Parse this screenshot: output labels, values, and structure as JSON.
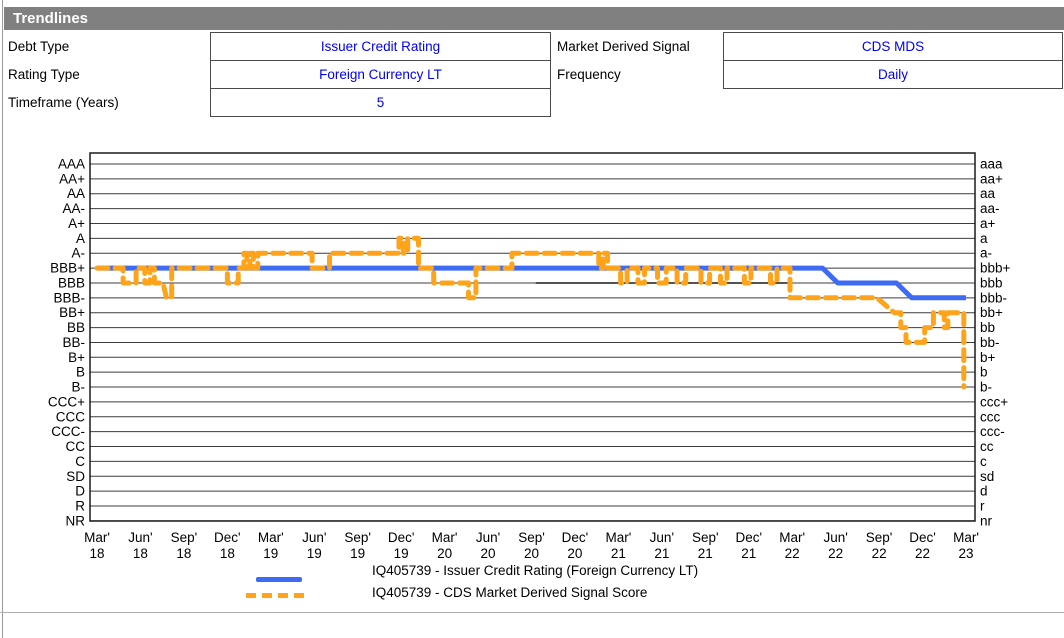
{
  "title": "Trendlines",
  "form": {
    "fields": [
      {
        "label": "Debt Type",
        "value": "Issuer Credit Rating"
      },
      {
        "label": "Market Derived Signal",
        "value": "CDS MDS"
      },
      {
        "label": "Rating Type",
        "value": "Foreign Currency LT"
      },
      {
        "label": "Frequency",
        "value": "Daily"
      },
      {
        "label": "Timeframe (Years)",
        "value": "5"
      }
    ]
  },
  "colors": {
    "titlebar_gray": "#808080",
    "value_text_blue": "#0000f5",
    "icr_blue": "#3e6bf4",
    "mds_orange": "#ffa41a"
  },
  "chart_data": {
    "type": "line",
    "title": "",
    "grid": true,
    "legend_position": "bottom",
    "y_categories_left": [
      "AAA",
      "AA+",
      "AA",
      "AA-",
      "A+",
      "A",
      "A-",
      "BBB+",
      "BBB",
      "BBB-",
      "BB+",
      "BB",
      "BB-",
      "B+",
      "B",
      "B-",
      "CCC+",
      "CCC",
      "CCC-",
      "CC",
      "C",
      "SD",
      "D",
      "R",
      "NR"
    ],
    "y_categories_right": [
      "aaa",
      "aa+",
      "aa",
      "aa-",
      "a+",
      "a",
      "a-",
      "bbb+",
      "bbb",
      "bbb-",
      "bb+",
      "bb",
      "bb-",
      "b+",
      "b",
      "b-",
      "ccc+",
      "ccc",
      "ccc-",
      "cc",
      "c",
      "sd",
      "d",
      "r",
      "nr"
    ],
    "x_ticks": [
      {
        "month": "Mar'",
        "year": "18"
      },
      {
        "month": "Jun'",
        "year": "18"
      },
      {
        "month": "Sep'",
        "year": "18"
      },
      {
        "month": "Dec'",
        "year": "18"
      },
      {
        "month": "Mar'",
        "year": "19"
      },
      {
        "month": "Jun'",
        "year": "19"
      },
      {
        "month": "Sep'",
        "year": "19"
      },
      {
        "month": "Dec'",
        "year": "19"
      },
      {
        "month": "Mar'",
        "year": "20"
      },
      {
        "month": "Jun'",
        "year": "20"
      },
      {
        "month": "Sep'",
        "year": "20"
      },
      {
        "month": "Dec'",
        "year": "20"
      },
      {
        "month": "Mar'",
        "year": "21"
      },
      {
        "month": "Jun'",
        "year": "21"
      },
      {
        "month": "Sep'",
        "year": "21"
      },
      {
        "month": "Dec'",
        "year": "21"
      },
      {
        "month": "Mar'",
        "year": "22"
      },
      {
        "month": "Jun'",
        "year": "22"
      },
      {
        "month": "Sep'",
        "year": "22"
      },
      {
        "month": "Dec'",
        "year": "22"
      },
      {
        "month": "Mar'",
        "year": "23"
      }
    ],
    "x_range": [
      0,
      20
    ],
    "x_unit": "quarters since Mar 2018",
    "y_unit": "rating scale index (0 = AAA ... 24 = NR)",
    "series": [
      {
        "id": "icr-line",
        "name": "IQ405739 - Issuer Credit Rating (Foreign Currency LT)",
        "color": "#3e6bf4",
        "style": "solid",
        "width": 5,
        "z": 1,
        "points": [
          [
            0,
            7
          ],
          [
            16.7,
            7
          ],
          [
            17.05,
            8
          ],
          [
            18.4,
            8
          ],
          [
            18.75,
            9
          ],
          [
            20,
            9
          ]
        ]
      },
      {
        "id": "mds-line",
        "name": "IQ405739 - CDS Market Derived Signal Score",
        "color": "#ffa41a",
        "style": "dashed",
        "width": 5,
        "z": 2,
        "points": [
          [
            0,
            7
          ],
          [
            0.6,
            7
          ],
          [
            0.6,
            8
          ],
          [
            0.9,
            8
          ],
          [
            0.9,
            7
          ],
          [
            1.1,
            7
          ],
          [
            1.1,
            8
          ],
          [
            1.22,
            8
          ],
          [
            1.22,
            7
          ],
          [
            1.32,
            7
          ],
          [
            1.32,
            8
          ],
          [
            1.52,
            8
          ],
          [
            1.6,
            9
          ],
          [
            1.72,
            9
          ],
          [
            1.72,
            7
          ],
          [
            3.0,
            7
          ],
          [
            3.0,
            8
          ],
          [
            3.25,
            8
          ],
          [
            3.25,
            7
          ],
          [
            3.38,
            7
          ],
          [
            3.38,
            6
          ],
          [
            3.45,
            6
          ],
          [
            3.45,
            7
          ],
          [
            3.52,
            7
          ],
          [
            3.52,
            6
          ],
          [
            3.6,
            6
          ],
          [
            3.6,
            7
          ],
          [
            3.7,
            7
          ],
          [
            3.7,
            6
          ],
          [
            4.95,
            6
          ],
          [
            4.95,
            7
          ],
          [
            5.35,
            7
          ],
          [
            5.35,
            6
          ],
          [
            6.95,
            6
          ],
          [
            6.95,
            5
          ],
          [
            7.05,
            5
          ],
          [
            7.05,
            6
          ],
          [
            7.15,
            6
          ],
          [
            7.15,
            5
          ],
          [
            7.4,
            5
          ],
          [
            7.4,
            7
          ],
          [
            7.75,
            7
          ],
          [
            7.75,
            8
          ],
          [
            8.55,
            8
          ],
          [
            8.55,
            9
          ],
          [
            8.72,
            9
          ],
          [
            8.72,
            7
          ],
          [
            9.55,
            7
          ],
          [
            9.55,
            6
          ],
          [
            11.55,
            6
          ],
          [
            11.55,
            7
          ],
          [
            11.65,
            7
          ],
          [
            11.65,
            6
          ],
          [
            11.75,
            6
          ],
          [
            11.75,
            7
          ],
          [
            12.05,
            7
          ],
          [
            12.05,
            8
          ],
          [
            12.2,
            8
          ],
          [
            12.2,
            7
          ],
          [
            12.45,
            7
          ],
          [
            12.45,
            8
          ],
          [
            12.6,
            8
          ],
          [
            12.6,
            7
          ],
          [
            12.9,
            7
          ],
          [
            12.9,
            8
          ],
          [
            13.1,
            8
          ],
          [
            13.1,
            7
          ],
          [
            13.35,
            7
          ],
          [
            13.35,
            8
          ],
          [
            13.55,
            8
          ],
          [
            13.55,
            7
          ],
          [
            13.9,
            7
          ],
          [
            13.9,
            8
          ],
          [
            14.1,
            8
          ],
          [
            14.1,
            7
          ],
          [
            14.35,
            7
          ],
          [
            14.35,
            8
          ],
          [
            14.5,
            8
          ],
          [
            14.5,
            7
          ],
          [
            14.9,
            7
          ],
          [
            14.9,
            8
          ],
          [
            15.05,
            8
          ],
          [
            15.05,
            7
          ],
          [
            15.5,
            7
          ],
          [
            15.5,
            8
          ],
          [
            15.65,
            8
          ],
          [
            15.65,
            7
          ],
          [
            15.95,
            7
          ],
          [
            15.95,
            9
          ],
          [
            17.95,
            9
          ],
          [
            18.35,
            10
          ],
          [
            18.5,
            10
          ],
          [
            18.5,
            11
          ],
          [
            18.62,
            11
          ],
          [
            18.62,
            12
          ],
          [
            19.05,
            12
          ],
          [
            19.05,
            11
          ],
          [
            19.25,
            11
          ],
          [
            19.25,
            10
          ],
          [
            19.5,
            10
          ],
          [
            19.5,
            11
          ],
          [
            19.58,
            11
          ],
          [
            19.58,
            10
          ],
          [
            19.95,
            10
          ],
          [
            19.95,
            15
          ]
        ]
      },
      {
        "id": "bbb-reference-line",
        "name": "BBB reference segment",
        "color": "#1a1a1a",
        "style": "solid",
        "width": 1.5,
        "z": 0,
        "points": [
          [
            10.1,
            8
          ],
          [
            15.95,
            8
          ]
        ]
      }
    ]
  }
}
